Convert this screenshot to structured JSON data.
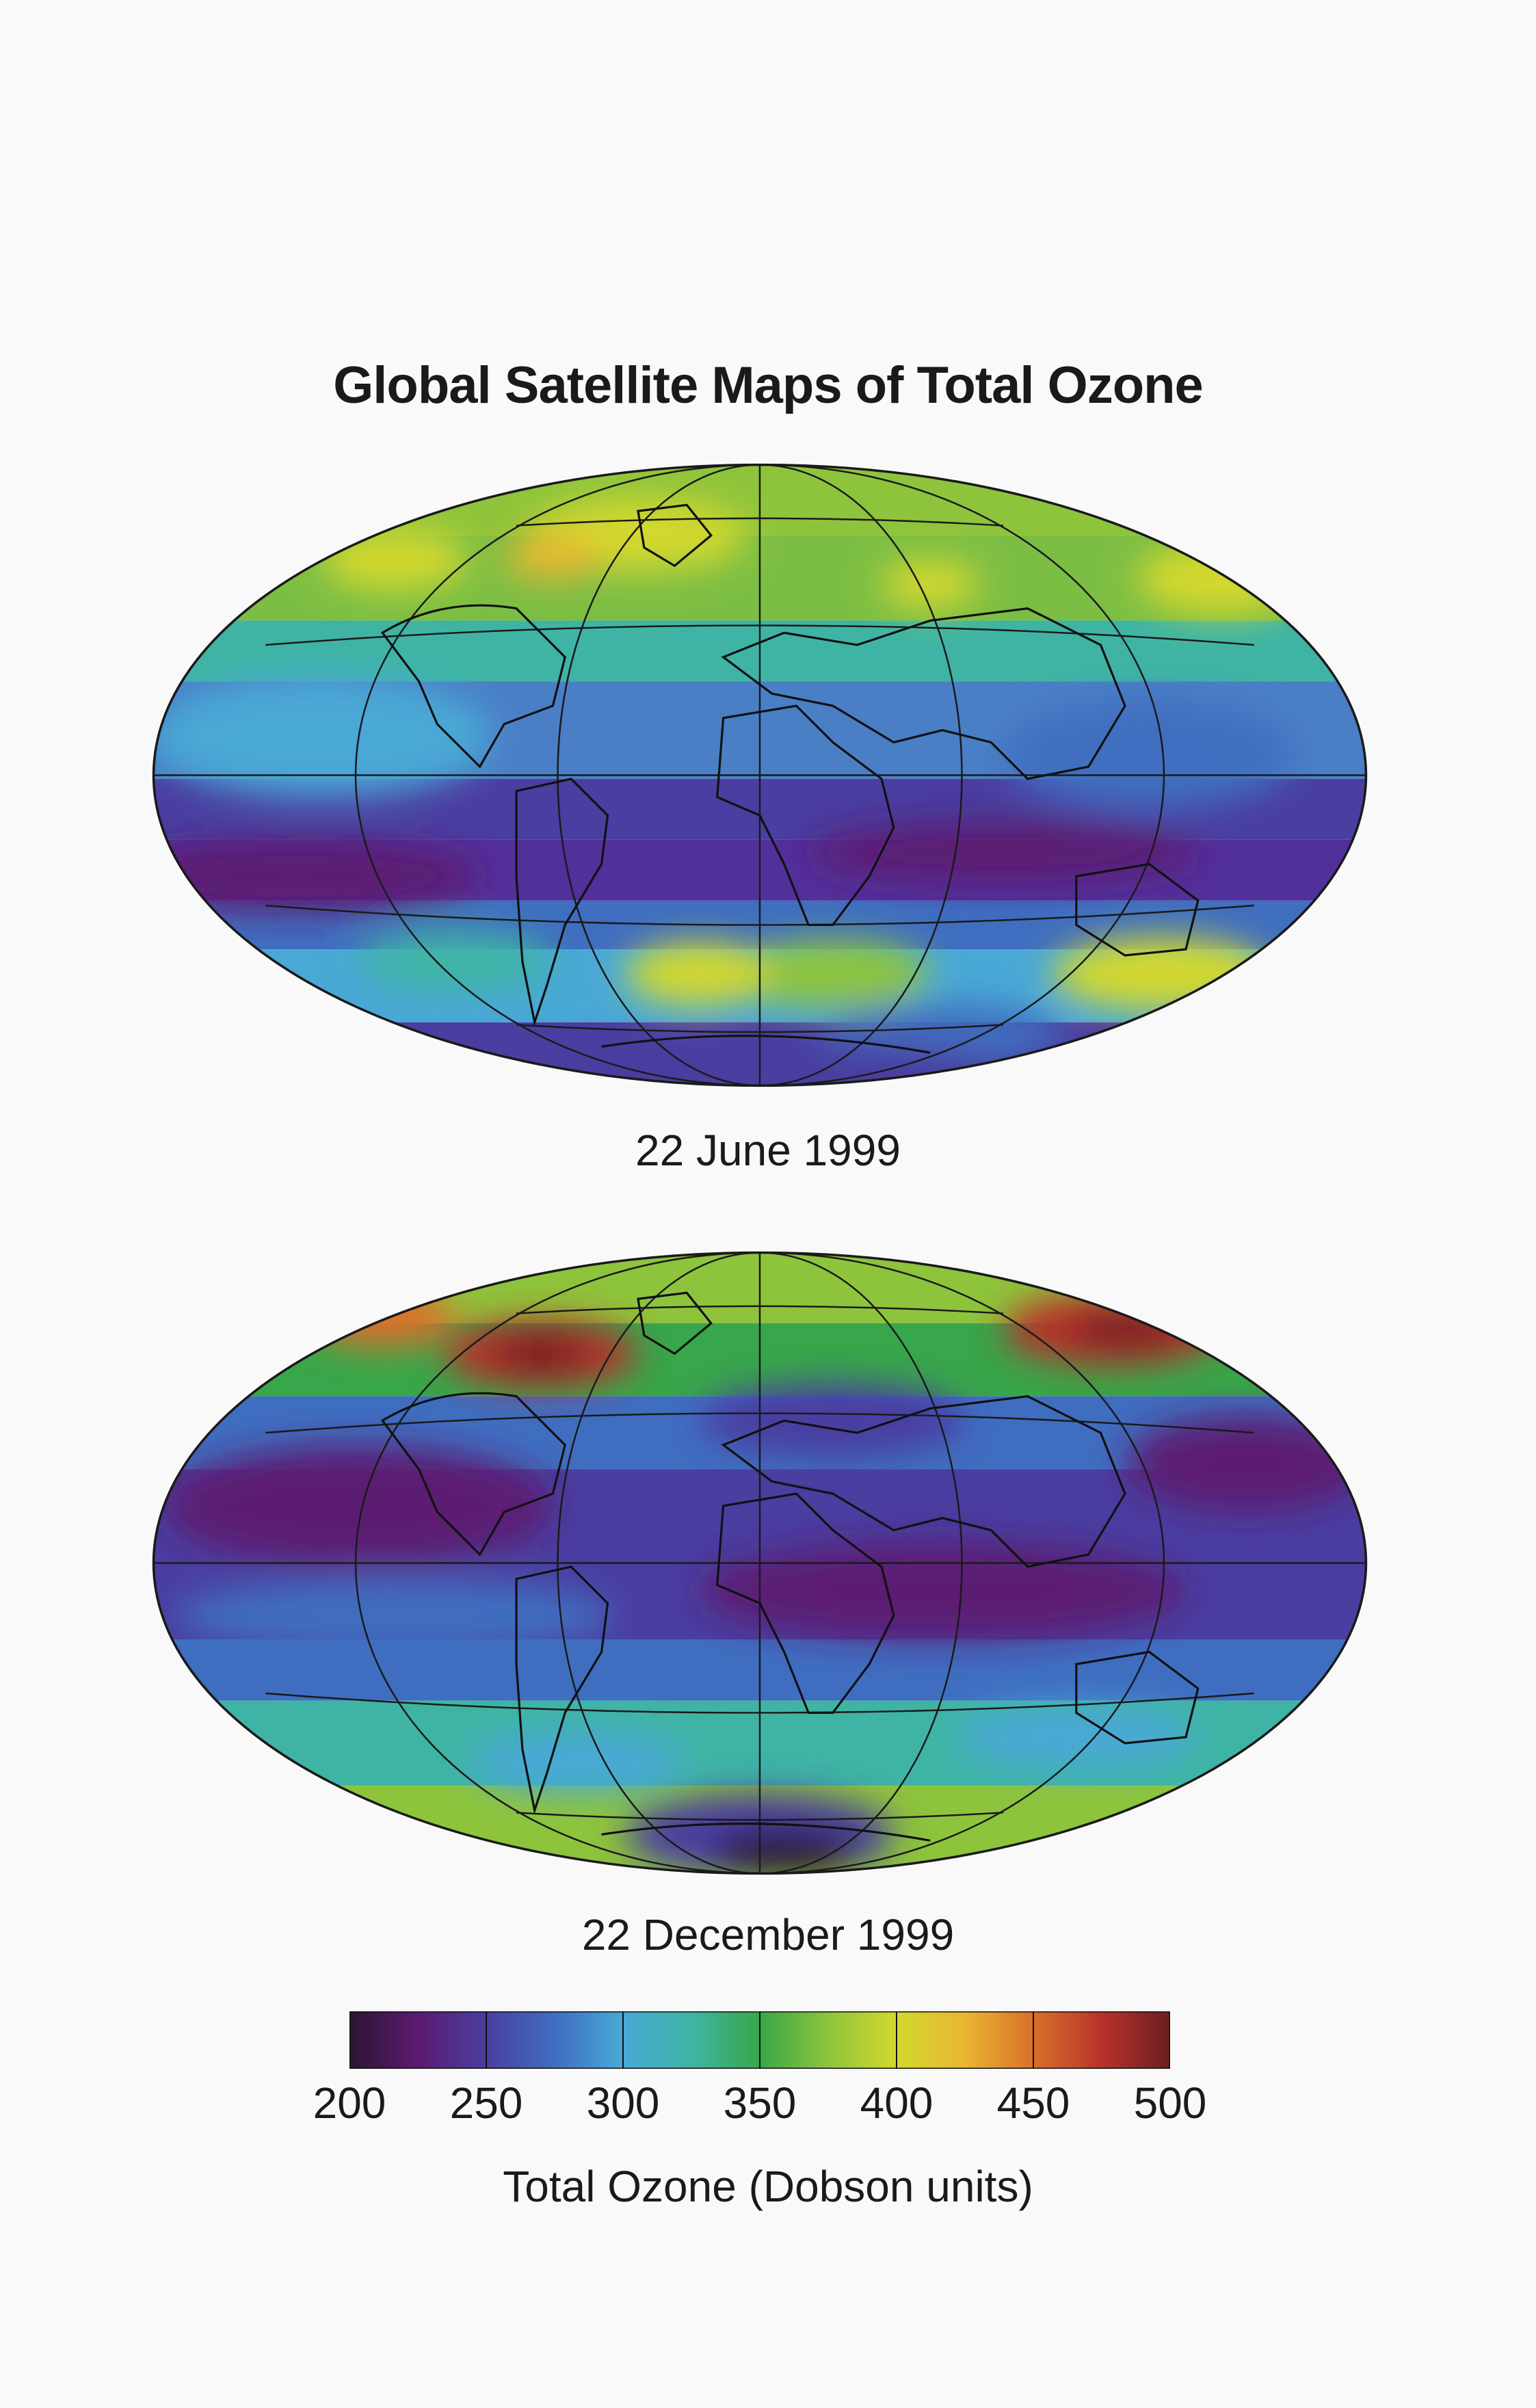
{
  "title": "Global Satellite Maps of Total Ozone",
  "maps": [
    {
      "id": "june",
      "label": "22 June 1999"
    },
    {
      "id": "december",
      "label": "22 December 1999"
    }
  ],
  "colorbar": {
    "ticks": [
      "200",
      "250",
      "300",
      "350",
      "400",
      "450",
      "500"
    ],
    "label": "Total Ozone (Dobson units)",
    "min": 200,
    "max": 500,
    "colors": [
      "#2a1530",
      "#5c1a72",
      "#4a3ea0",
      "#3f6ec0",
      "#49a8d6",
      "#3fb4a4",
      "#38a64a",
      "#8ec43c",
      "#d3d82e",
      "#e8b630",
      "#d9702a",
      "#b8322a",
      "#6a1f22"
    ]
  }
}
